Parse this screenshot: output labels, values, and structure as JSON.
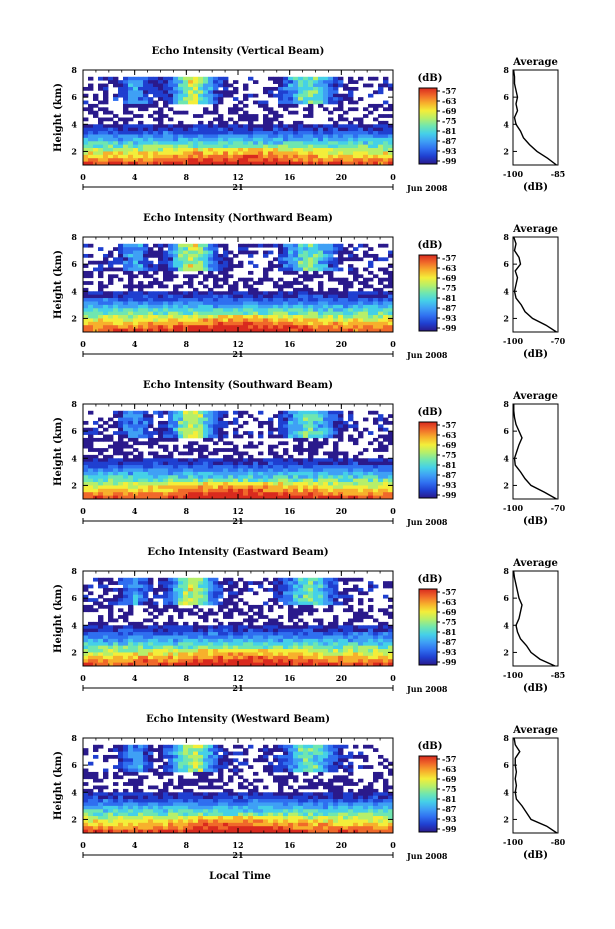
{
  "figure": {
    "x_axis_title": "Local Time",
    "date_label": "Jun 2008",
    "day_label": "21",
    "colorbar_unit": "(dB)",
    "colorbar_ticks": [
      "-57",
      "-63",
      "-69",
      "-75",
      "-81",
      "-87",
      "-93",
      "-99"
    ],
    "colorscale": [
      "#2a1a8c",
      "#1f3fd0",
      "#2f6ff0",
      "#3fa0f5",
      "#45d0e8",
      "#6fe6b0",
      "#b6ef6a",
      "#f3ee3a",
      "#f7b02c",
      "#f0692a",
      "#d92a1e"
    ],
    "avg_title": "Average",
    "avg_xlabel": "(dB)"
  },
  "chart_data": [
    {
      "type": "heatmap",
      "title": "Echo Intensity (Vertical Beam)",
      "ylabel": "Height (km)",
      "xlim": [
        0,
        24
      ],
      "ylim": [
        1,
        8
      ],
      "xticks": [
        "0",
        "4",
        "8",
        "12",
        "16",
        "20",
        "0"
      ],
      "yticks": [
        "2",
        "4",
        "6",
        "8"
      ],
      "zlim": [
        -99,
        -57
      ],
      "average_profile": {
        "xlim": [
          -100,
          -85
        ],
        "xtick_labels": [
          "-100",
          "-85"
        ],
        "ylim": [
          1,
          8
        ],
        "yticks": [
          "2",
          "4",
          "6",
          "8"
        ],
        "height_km": [
          1.0,
          1.5,
          2.0,
          2.5,
          3.0,
          3.5,
          4.0,
          4.5,
          5.0,
          5.5,
          6.0,
          6.5,
          7.0,
          7.5,
          8.0
        ],
        "db": [
          -85.5,
          -88.5,
          -92.0,
          -94.5,
          -96.5,
          -97.5,
          -99.0,
          -99.5,
          -98.5,
          -99.0,
          -98.5,
          -99.0,
          -99.5,
          -99.5,
          -99.8
        ]
      }
    },
    {
      "type": "heatmap",
      "title": "Echo Intensity (Northward Beam)",
      "ylabel": "Height (km)",
      "xlim": [
        0,
        24
      ],
      "ylim": [
        1,
        8
      ],
      "xticks": [
        "0",
        "4",
        "8",
        "12",
        "16",
        "20",
        "0"
      ],
      "yticks": [
        "2",
        "4",
        "6",
        "8"
      ],
      "zlim": [
        -99,
        -57
      ],
      "average_profile": {
        "xlim": [
          -100,
          -70
        ],
        "xtick_labels": [
          "-100",
          "-70"
        ],
        "ylim": [
          1,
          8
        ],
        "yticks": [
          "2",
          "4",
          "6",
          "8"
        ],
        "height_km": [
          1.0,
          1.5,
          2.0,
          2.5,
          3.0,
          3.5,
          4.0,
          4.5,
          5.0,
          5.5,
          6.0,
          6.5,
          7.0,
          7.5,
          8.0
        ],
        "db": [
          -71.0,
          -78.0,
          -87.0,
          -92.0,
          -94.5,
          -98.0,
          -99.0,
          -98.0,
          -97.0,
          -98.5,
          -95.0,
          -96.0,
          -99.0,
          -98.0,
          -99.5
        ]
      }
    },
    {
      "type": "heatmap",
      "title": "Echo Intensity (Southward Beam)",
      "ylabel": "Height (km)",
      "xlim": [
        0,
        24
      ],
      "ylim": [
        1,
        8
      ],
      "xticks": [
        "0",
        "4",
        "8",
        "12",
        "16",
        "20",
        "0"
      ],
      "yticks": [
        "2",
        "4",
        "6",
        "8"
      ],
      "zlim": [
        -99,
        -57
      ],
      "average_profile": {
        "xlim": [
          -100,
          -70
        ],
        "xtick_labels": [
          "-100",
          "-70"
        ],
        "ylim": [
          1,
          8
        ],
        "yticks": [
          "2",
          "4",
          "6",
          "8"
        ],
        "height_km": [
          1.0,
          1.5,
          2.0,
          2.5,
          3.0,
          3.5,
          4.0,
          4.5,
          5.0,
          5.5,
          6.0,
          6.5,
          7.0,
          7.5,
          8.0
        ],
        "db": [
          -71.0,
          -79.0,
          -88.0,
          -92.0,
          -95.0,
          -98.5,
          -99.0,
          -97.5,
          -96.0,
          -94.0,
          -96.0,
          -98.0,
          -99.0,
          -99.5,
          -99.5
        ]
      }
    },
    {
      "type": "heatmap",
      "title": "Echo Intensity (Eastward Beam)",
      "ylabel": "Height (km)",
      "xlim": [
        0,
        24
      ],
      "ylim": [
        1,
        8
      ],
      "xticks": [
        "0",
        "4",
        "8",
        "12",
        "16",
        "20",
        "0"
      ],
      "yticks": [
        "2",
        "4",
        "6",
        "8"
      ],
      "zlim": [
        -99,
        -57
      ],
      "average_profile": {
        "xlim": [
          -100,
          -85
        ],
        "xtick_labels": [
          "-100",
          "-85"
        ],
        "ylim": [
          1,
          8
        ],
        "yticks": [
          "2",
          "4",
          "6",
          "8"
        ],
        "height_km": [
          1.0,
          1.5,
          2.0,
          2.5,
          3.0,
          3.5,
          4.0,
          4.5,
          5.0,
          5.5,
          6.0,
          6.5,
          7.0,
          7.5,
          8.0
        ],
        "db": [
          -86.0,
          -91.0,
          -94.0,
          -95.5,
          -97.5,
          -98.5,
          -99.0,
          -98.0,
          -97.5,
          -97.0,
          -98.0,
          -98.5,
          -99.0,
          -99.5,
          -99.8
        ]
      }
    },
    {
      "type": "heatmap",
      "title": "Echo Intensity (Westward Beam)",
      "ylabel": "Height (km)",
      "xlim": [
        0,
        24
      ],
      "ylim": [
        1,
        8
      ],
      "xticks": [
        "0",
        "4",
        "8",
        "12",
        "16",
        "20",
        "0"
      ],
      "yticks": [
        "2",
        "4",
        "6",
        "8"
      ],
      "zlim": [
        -99,
        -57
      ],
      "average_profile": {
        "xlim": [
          -100,
          -80
        ],
        "xtick_labels": [
          "-100",
          "-80"
        ],
        "ylim": [
          1,
          8
        ],
        "yticks": [
          "2",
          "4",
          "6",
          "8"
        ],
        "height_km": [
          1.0,
          1.5,
          2.0,
          2.5,
          3.0,
          3.5,
          4.0,
          4.5,
          5.0,
          5.5,
          6.0,
          6.5,
          7.0,
          7.5,
          8.0
        ],
        "db": [
          -80.5,
          -85.0,
          -92.0,
          -94.0,
          -96.0,
          -98.5,
          -99.0,
          -98.5,
          -99.0,
          -98.5,
          -99.0,
          -99.0,
          -97.0,
          -99.0,
          -99.5
        ]
      }
    }
  ]
}
